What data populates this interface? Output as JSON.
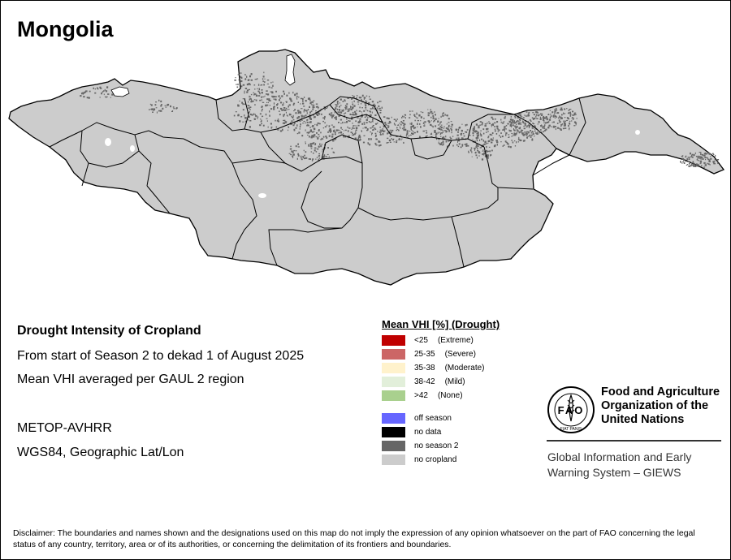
{
  "map": {
    "title": "Mongolia",
    "country_fill": "#cccccc",
    "crop_dot_color": "#666666",
    "boundary_color": "#000000"
  },
  "info": {
    "title": "Drought Intensity of Cropland",
    "period": "From start of Season 2 to dekad 1 of August 2025",
    "method": "Mean VHI averaged per GAUL 2 region",
    "sensor": "METOP-AVHRR",
    "projection": "WGS84, Geographic Lat/Lon"
  },
  "legend": {
    "title": "Mean VHI [%] (Drought)",
    "classes": [
      {
        "range": "<25",
        "label": "(Extreme)",
        "color": "#c00000"
      },
      {
        "range": "25-35",
        "label": "(Severe)",
        "color": "#cc6666"
      },
      {
        "range": "35-38",
        "label": "(Moderate)",
        "color": "#fff2cc"
      },
      {
        "range": "38-42",
        "label": "(Mild)",
        "color": "#e2efda"
      },
      {
        "range": ">42",
        "label": "(None)",
        "color": "#a9d08e"
      }
    ],
    "other": [
      {
        "label": "off season",
        "color": "#6666ff"
      },
      {
        "label": "no data",
        "color": "#000000"
      },
      {
        "label": "no season 2",
        "color": "#666666"
      },
      {
        "label": "no cropland",
        "color": "#cccccc"
      }
    ]
  },
  "fao": {
    "logo_text": "FAO",
    "logo_motto": "FIAT PANIS",
    "name_line1": "Food and Agriculture",
    "name_line2": "Organization of the",
    "name_line3": "United Nations",
    "giews_line1": "Global Information and Early",
    "giews_line2": "Warning System – GIEWS"
  },
  "disclaimer": "Disclaimer: The boundaries and names shown and the designations used on this map do not imply the expression of any opinion whatsoever on the part of FAO concerning the legal status of any country, territory, area or of its authorities, or concerning the delimitation of its frontiers and boundaries."
}
